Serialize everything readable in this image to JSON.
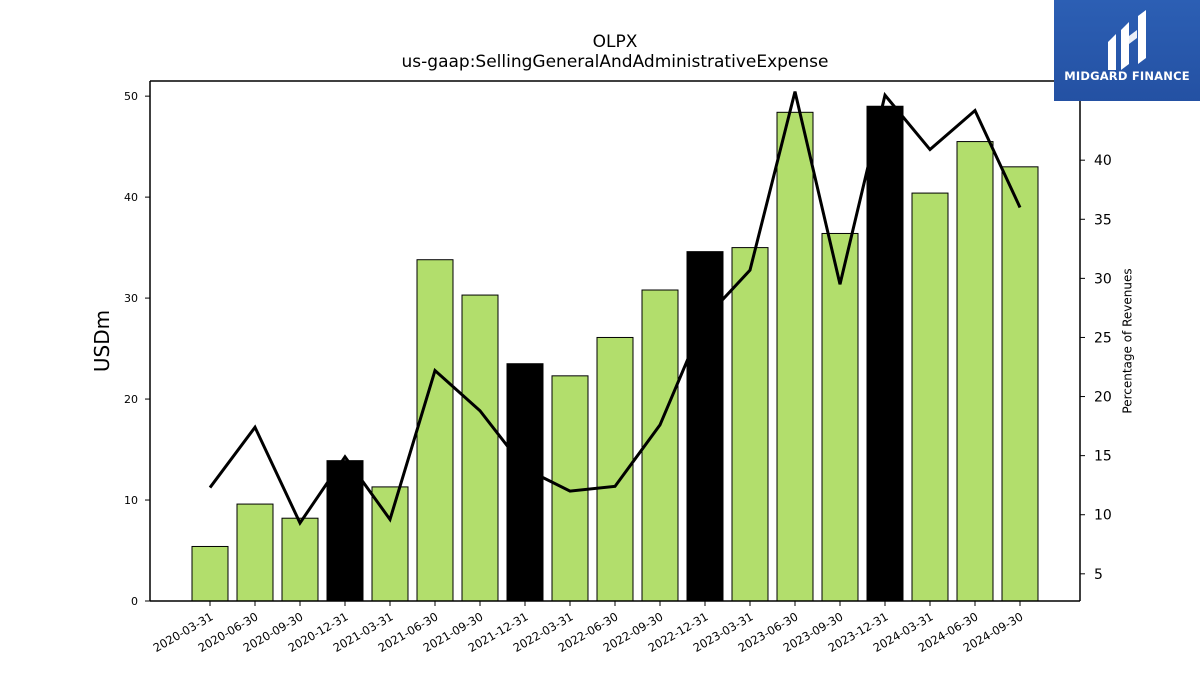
{
  "header": {
    "title": "OLPX",
    "subtitle": "us-gaap:SellingGeneralAndAdministrativeExpense"
  },
  "logo": {
    "text": "MIDGARD FINANCE",
    "icon": "midgard-logo-icon",
    "color": "#2c5fb4"
  },
  "chart_data": {
    "type": "bar",
    "title": "OLPX",
    "subtitle": "us-gaap:SellingGeneralAndAdministrativeExpense",
    "ylabel": "USDm",
    "y2label": "Percentage of Revenues",
    "ylim": [
      0,
      51.5
    ],
    "y2lim": [
      2.7,
      46.7
    ],
    "yticks": [
      0,
      10,
      20,
      30,
      40,
      50
    ],
    "y2ticks": [
      5,
      10,
      15,
      20,
      25,
      30,
      35,
      40
    ],
    "categories": [
      "2020-03-31",
      "2020-06-30",
      "2020-09-30",
      "2020-12-31",
      "2021-03-31",
      "2021-06-30",
      "2021-09-30",
      "2021-12-31",
      "2022-03-31",
      "2022-06-30",
      "2022-09-30",
      "2022-12-31",
      "2023-03-31",
      "2023-06-30",
      "2023-09-30",
      "2023-12-31",
      "2024-03-31",
      "2024-06-30",
      "2024-09-30"
    ],
    "values": [
      5.4,
      9.6,
      8.2,
      13.9,
      11.3,
      33.8,
      30.3,
      23.5,
      22.3,
      26.1,
      30.8,
      34.6,
      35.0,
      48.4,
      36.4,
      49.0,
      40.4,
      45.5,
      43.0
    ],
    "pct_of_revenues": [
      12.3,
      17.4,
      9.3,
      14.9,
      9.6,
      22.2,
      18.8,
      13.9,
      12.0,
      12.4,
      17.6,
      26.6,
      30.7,
      45.8,
      29.5,
      45.5,
      40.9,
      44.2,
      36.0
    ],
    "highlight": [
      false,
      false,
      false,
      true,
      false,
      false,
      false,
      true,
      false,
      false,
      false,
      true,
      false,
      false,
      false,
      true,
      false,
      false,
      false
    ],
    "colors": {
      "bar": "#b2de6c",
      "highlight": "#000000",
      "line": "#000000"
    },
    "grid": false
  }
}
